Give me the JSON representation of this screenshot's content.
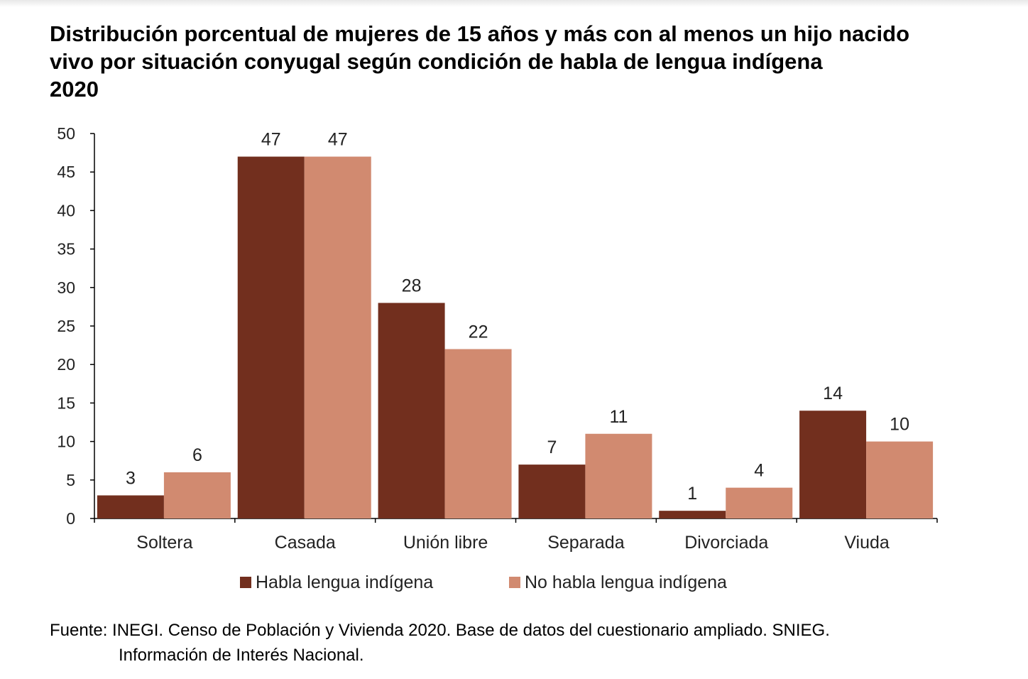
{
  "chart_data": {
    "type": "bar",
    "title": [
      "Distribución porcentual de mujeres de 15 años y más con al menos un hijo nacido",
      "vivo por situación conyugal según condición de habla de lengua indígena",
      "2020"
    ],
    "categories": [
      "Soltera",
      "Casada",
      "Unión libre",
      "Separada",
      "Divorciada",
      "Viuda"
    ],
    "series": [
      {
        "name": "Habla lengua indígena",
        "color": "#722F1E",
        "values": [
          3,
          47,
          28,
          7,
          1,
          14
        ]
      },
      {
        "name": "No habla lengua indígena",
        "color": "#D18A70",
        "values": [
          6,
          47,
          22,
          11,
          4,
          10
        ]
      }
    ],
    "ylim": [
      0,
      50
    ],
    "yticks": [
      0,
      5,
      10,
      15,
      20,
      25,
      30,
      35,
      40,
      45,
      50
    ],
    "xlabel": "",
    "ylabel": "",
    "grid": false,
    "legend": "bottom"
  },
  "source": {
    "line1": "Fuente: INEGI. Censo de Población y Vivienda 2020. Base de datos del cuestionario ampliado. SNIEG.",
    "line2": "Información de Interés Nacional."
  }
}
